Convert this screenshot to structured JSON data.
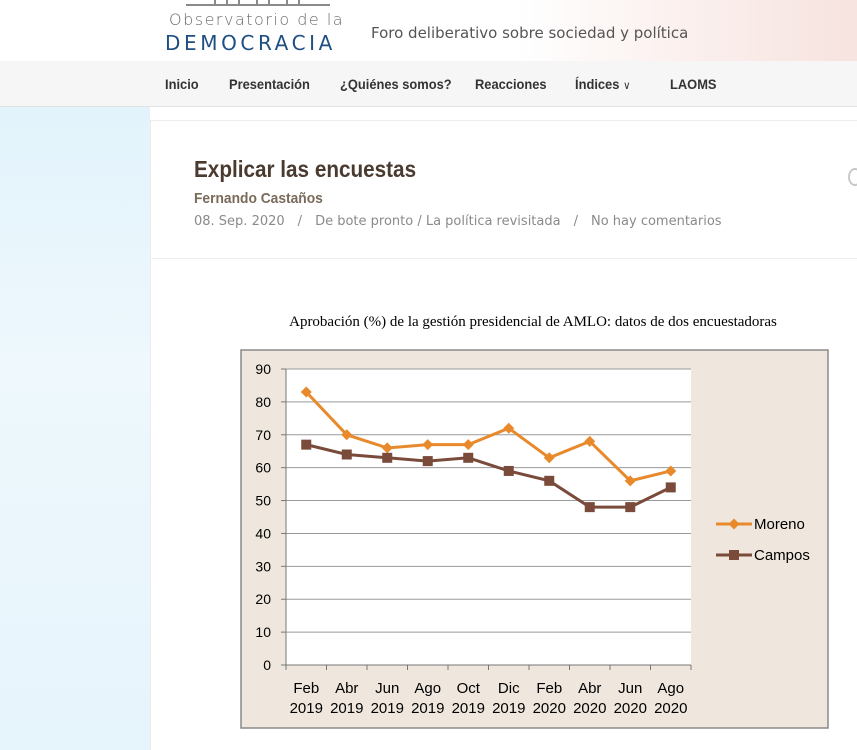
{
  "site": {
    "logo_top": "Observatorio de la",
    "logo_bottom": "DEMOCRACIA",
    "tagline": "Foro deliberativo sobre sociedad y política"
  },
  "nav": {
    "items": [
      {
        "label": "Inicio"
      },
      {
        "label": "Presentación"
      },
      {
        "label": "¿Quiénes somos?"
      },
      {
        "label": "Reacciones"
      },
      {
        "label": "Índices"
      },
      {
        "label": "LAOMS"
      }
    ]
  },
  "post": {
    "title": "Explicar las encuestas",
    "author": "Fernando Castaños",
    "date": "08. Sep. 2020",
    "categories": "De bote pronto / La política revisitada",
    "comments": "No hay comentarios",
    "separator": "/"
  },
  "chart_data": {
    "type": "line",
    "title": "Aprobación (%) de la gestión presidencial de AMLO: datos de dos encuestadoras",
    "categories": [
      [
        "Feb",
        "2019"
      ],
      [
        "Abr",
        "2019"
      ],
      [
        "Jun",
        "2019"
      ],
      [
        "Ago",
        "2019"
      ],
      [
        "Oct",
        "2019"
      ],
      [
        "Dic",
        "2019"
      ],
      [
        "Feb",
        "2020"
      ],
      [
        "Abr",
        "2020"
      ],
      [
        "Jun",
        "2020"
      ],
      [
        "Ago",
        "2020"
      ]
    ],
    "series": [
      {
        "name": "Moreno",
        "marker": "diamond",
        "color": "#e8892b",
        "values": [
          83,
          70,
          66,
          67,
          67,
          72,
          63,
          68,
          56,
          59
        ]
      },
      {
        "name": "Campos",
        "marker": "square",
        "color": "#7a4a3a",
        "values": [
          67,
          64,
          63,
          62,
          63,
          59,
          56,
          48,
          48,
          54
        ]
      }
    ],
    "ylim": [
      0,
      90
    ],
    "yticks": [
      0,
      10,
      20,
      30,
      40,
      50,
      60,
      70,
      80,
      90
    ],
    "grid": true,
    "legend": "right",
    "frame_color": "#efe7dd"
  }
}
